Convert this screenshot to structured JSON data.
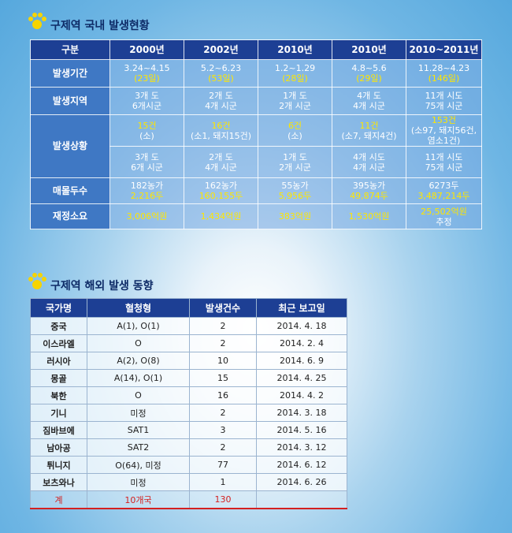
{
  "domestic": {
    "title": "구제역 국내 발생현황",
    "header": [
      "구분",
      "2000년",
      "2002년",
      "2010년",
      "2010년",
      "2010~2011년"
    ],
    "rows": [
      {
        "label": "발생기간",
        "line_colors": [
          "#ffffff",
          "#ffe600"
        ],
        "height": 35,
        "cells": [
          [
            "3.24~4.15",
            "(23일)"
          ],
          [
            "5.2~6.23",
            "(53일)"
          ],
          [
            "1.2~1.29",
            "(28일)"
          ],
          [
            "4.8~5.6",
            "(29일)"
          ],
          [
            "11.28~4.23",
            "(146일)"
          ]
        ]
      },
      {
        "label": "발생지역",
        "line_colors": [
          "#ffffff",
          "#ffffff"
        ],
        "height": 35,
        "cells": [
          [
            "3개 도",
            "6개시군"
          ],
          [
            "2개 도",
            "4개 시군"
          ],
          [
            "1개 도",
            "2개 시군"
          ],
          [
            "4개 도",
            "4개 시군"
          ],
          [
            "11개 시도",
            "75개 시군"
          ]
        ]
      },
      {
        "label": "발생상황",
        "span": 2,
        "line_colors": [
          "#ffe600",
          "#ffffff",
          "#ffffff"
        ],
        "height": 40,
        "cells": [
          [
            "15건",
            "(소)"
          ],
          [
            "16건",
            "(소1, 돼지15건)"
          ],
          [
            "6건",
            "(소)"
          ],
          [
            "11건",
            "(소7, 돼지4건)"
          ],
          [
            "153건",
            "(소97, 돼지56건,",
            "염소1건)"
          ]
        ]
      },
      {
        "line_colors": [
          "#ffffff",
          "#ffffff"
        ],
        "height": 40,
        "cells": [
          [
            "3개 도",
            "6개 시군"
          ],
          [
            "2개 도",
            "4개 시군"
          ],
          [
            "1개 도",
            "2개 시군"
          ],
          [
            "4개 시도",
            "4개 시군"
          ],
          [
            "11개 시도",
            "75개 시군"
          ]
        ]
      },
      {
        "label": "매몰두수",
        "line_colors": [
          "#ffffff",
          "#ffe600"
        ],
        "height": 33,
        "cells": [
          [
            "182농가",
            "2,216두"
          ],
          [
            "162농가",
            "160,155두"
          ],
          [
            "55농가",
            "5,956두"
          ],
          [
            "395농가",
            "49,874두"
          ],
          [
            "6273두",
            "3,487,214두"
          ]
        ]
      },
      {
        "label": "재정소요",
        "line_colors": [
          "#ffe600",
          "#ffffff"
        ],
        "height": 32,
        "cells": [
          [
            "3,006억원"
          ],
          [
            "1,434억원"
          ],
          [
            "383억원"
          ],
          [
            "1,530억원"
          ],
          [
            "25,502억원",
            "추정"
          ]
        ]
      }
    ]
  },
  "overseas": {
    "title": "구제역 해외 발생 동향",
    "header": [
      "국가명",
      "혈청형",
      "발생건수",
      "최근 보고일"
    ],
    "rows": [
      [
        "중국",
        "A(1), O(1)",
        "2",
        "2014. 4. 18"
      ],
      [
        "이스라엘",
        "O",
        "2",
        "2014. 2. 4"
      ],
      [
        "러시아",
        "A(2), O(8)",
        "10",
        "2014. 6. 9"
      ],
      [
        "몽골",
        "A(14), O(1)",
        "15",
        "2014. 4. 25"
      ],
      [
        "북한",
        "O",
        "16",
        "2014. 4. 2"
      ],
      [
        "기니",
        "미정",
        "2",
        "2014. 3. 18"
      ],
      [
        "짐바브에",
        "SAT1",
        "3",
        "2014. 5. 16"
      ],
      [
        "남아공",
        "SAT2",
        "2",
        "2014. 3. 12"
      ],
      [
        "튀니지",
        "O(64), 미정",
        "77",
        "2014. 6. 12"
      ],
      [
        "보츠와나",
        "미정",
        "1",
        "2014. 6. 26"
      ]
    ],
    "total": [
      "계",
      "10개국",
      "130",
      ""
    ]
  }
}
